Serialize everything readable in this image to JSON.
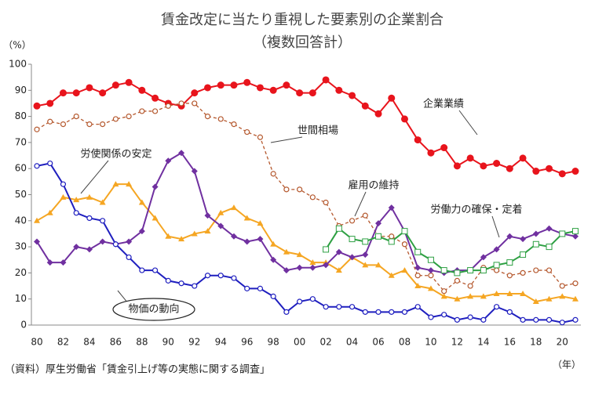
{
  "chart_data": {
    "type": "line",
    "title": "賃金改定に当たり重視した要素別の企業割合",
    "subtitle": "（複数回答計）",
    "y_unit": "（%）",
    "x_unit": "（年）",
    "source": "（資料）厚生労働省「賃金引上げ等の実態に関する調査」",
    "categories": [
      "80",
      null,
      "82",
      null,
      "84",
      null,
      "86",
      null,
      "88",
      null,
      "90",
      null,
      "92",
      null,
      "94",
      null,
      "96",
      null,
      "98",
      null,
      "00",
      null,
      "02",
      null,
      "04",
      null,
      "06",
      null,
      "08",
      null,
      "10",
      null,
      "12",
      null,
      "14",
      null,
      "16",
      null,
      "18",
      null,
      "20",
      null
    ],
    "ylim": [
      0,
      100
    ],
    "yticks": [
      0,
      10,
      20,
      30,
      40,
      50,
      60,
      70,
      80,
      90,
      100
    ],
    "grid": false,
    "series": [
      {
        "name": "企業業績",
        "color": "#e8141c",
        "marker": "circle-filled",
        "dash": false,
        "values": [
          84,
          85,
          89,
          89,
          91,
          89,
          92,
          93,
          90,
          87,
          85,
          84,
          89,
          91,
          92,
          92,
          93,
          91,
          90,
          92,
          89,
          89,
          94,
          90,
          88,
          84,
          81,
          87,
          79,
          71,
          66,
          68,
          61,
          64,
          61,
          62,
          60,
          64,
          59,
          60,
          58,
          59
        ]
      },
      {
        "name": "世間相場",
        "color": "#b5592f",
        "marker": "circle-open",
        "dash": true,
        "values": [
          75,
          78,
          77,
          80,
          77,
          77,
          79,
          80,
          82,
          82,
          84,
          85,
          85,
          80,
          79,
          77,
          74,
          72,
          58,
          52,
          52,
          49,
          47,
          38,
          40,
          42,
          34,
          34,
          31,
          19,
          19,
          13,
          17,
          15,
          22,
          21,
          19,
          20,
          21,
          21,
          15,
          16
        ]
      },
      {
        "name": "労使関係の安定",
        "color": "#f5a623",
        "marker": "triangle",
        "dash": false,
        "values": [
          40,
          43,
          49,
          48,
          49,
          47,
          54,
          54,
          47,
          41,
          34,
          33,
          35,
          36,
          43,
          45,
          41,
          39,
          31,
          28,
          27,
          24,
          24,
          21,
          26,
          23,
          23,
          19,
          21,
          15,
          14,
          11,
          10,
          11,
          11,
          12,
          12,
          12,
          9,
          10,
          11,
          10
        ]
      },
      {
        "name": "雇用の維持",
        "color": "#7030a0",
        "marker": "diamond",
        "dash": false,
        "values": [
          32,
          24,
          24,
          30,
          29,
          32,
          31,
          32,
          36,
          53,
          63,
          66,
          59,
          42,
          38,
          34,
          32,
          33,
          25,
          21,
          22,
          22,
          23,
          28,
          26,
          27,
          39,
          45,
          36,
          22,
          21,
          20,
          21,
          21,
          26,
          29,
          34,
          33,
          35,
          37,
          35,
          34
        ]
      },
      {
        "name": "労働力の確保・定着",
        "color": "#2ea043",
        "marker": "square-open",
        "dash": false,
        "values": [
          null,
          null,
          null,
          null,
          null,
          null,
          null,
          null,
          null,
          null,
          null,
          null,
          null,
          null,
          null,
          null,
          null,
          null,
          null,
          null,
          null,
          null,
          29,
          37,
          33,
          32,
          34,
          32,
          36,
          28,
          25,
          21,
          20,
          21,
          21,
          23,
          24,
          27,
          31,
          30,
          35,
          36
        ]
      },
      {
        "name": "物価の動向",
        "color": "#1f1fbf",
        "marker": "circle-open",
        "dash": false,
        "values": [
          61,
          62,
          54,
          43,
          41,
          40,
          31,
          26,
          21,
          21,
          17,
          16,
          15,
          19,
          19,
          18,
          14,
          14,
          11,
          5,
          9,
          10,
          7,
          7,
          7,
          5,
          5,
          5,
          5,
          7,
          3,
          4,
          2,
          3,
          2,
          7,
          5,
          2,
          2,
          2,
          1,
          2
        ]
      }
    ]
  }
}
